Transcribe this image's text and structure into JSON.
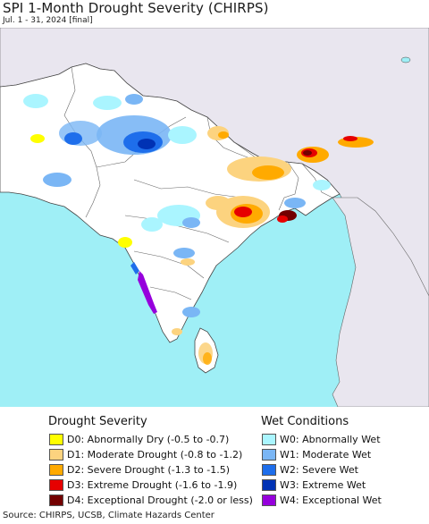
{
  "header": {
    "title": "SPI 1-Month Drought Severity (CHIRPS)",
    "subtitle": "Jul. 1 - 31, 2024 [final]"
  },
  "map": {
    "ocean_color": "#9feff6",
    "land_color": "#ffffff",
    "outside_region_color": "#e9e6ef",
    "border_color": "#555555"
  },
  "legend": {
    "drought": {
      "heading": "Drought Severity",
      "items": [
        {
          "label": "D0: Abnormally Dry (-0.5 to -0.7)",
          "color": "#ffff00"
        },
        {
          "label": "D1: Moderate Drought (-0.8 to -1.2)",
          "color": "#fcd37f"
        },
        {
          "label": "D2: Severe Drought (-1.3 to -1.5)",
          "color": "#ffaa00"
        },
        {
          "label": "D3: Extreme Drought (-1.6 to -1.9)",
          "color": "#e60000"
        },
        {
          "label": "D4: Exceptional Drought (-2.0 or less)",
          "color": "#730000"
        }
      ]
    },
    "wet": {
      "heading": "Wet Conditions",
      "items": [
        {
          "label": "W0: Abnormally Wet",
          "color": "#aaf5ff"
        },
        {
          "label": "W1: Moderate Wet",
          "color": "#7ab6f5"
        },
        {
          "label": "W2: Severe Wet",
          "color": "#1e6eeb"
        },
        {
          "label": "W3: Extreme Wet",
          "color": "#0032b4"
        },
        {
          "label": "W4: Exceptional Wet",
          "color": "#9600dc"
        }
      ]
    }
  },
  "footer": {
    "source": "Source: CHIRPS, UCSB, Climate Hazards Center"
  }
}
